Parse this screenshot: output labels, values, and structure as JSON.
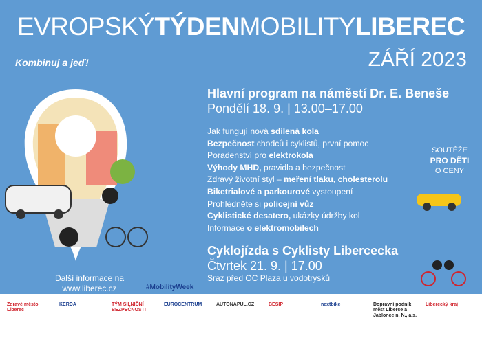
{
  "header": {
    "title_1": "EVROPSKÝ",
    "title_2": "TÝDEN",
    "title_3": "MOBILITY",
    "title_4": "LIBEREC",
    "slogan": "Kombinuj a jeď!",
    "date": "ZÁŘÍ 2023"
  },
  "main": {
    "heading": "Hlavní program na náměstí Dr. E. Beneše",
    "time": "Pondělí 18. 9. | 13.00–17.00",
    "items": [
      [
        [
          "Jak fungují nová ",
          false
        ],
        [
          "sdílená kola",
          true
        ]
      ],
      [
        [
          "Bezpečnost",
          true
        ],
        [
          " chodců i cyklistů, první pomoc",
          false
        ]
      ],
      [
        [
          "Poradenství pro ",
          false
        ],
        [
          "elektrokola",
          true
        ]
      ],
      [
        [
          "Výhody MHD,",
          true
        ],
        [
          " pravidla a bezpečnost",
          false
        ]
      ],
      [
        [
          "Zdravý životní styl – ",
          false
        ],
        [
          "meření tlaku, cholesterolu",
          true
        ]
      ],
      [
        [
          "Biketrialové a parkourové",
          true
        ],
        [
          " vystoupení",
          false
        ]
      ],
      [
        [
          "Prohlédněte si ",
          false
        ],
        [
          "policejní vůz",
          true
        ]
      ],
      [
        [
          "Cyklistické desatero,",
          true
        ],
        [
          " ukázky údržby kol",
          false
        ]
      ],
      [
        [
          "Informace ",
          false
        ],
        [
          "o elektromobilech",
          true
        ]
      ]
    ],
    "ride_heading": "Cyklojízda s Cyklisty Libercecka",
    "ride_time": "Čtvrtek 21. 9. | 17.00",
    "ride_place": "Sraz před OC Plaza u vodotrysků"
  },
  "kids": {
    "line1": "SOUTĚŽE",
    "line2": "PRO DĚTI",
    "line3": "O CENY"
  },
  "footer": {
    "info": "Další informace na",
    "url": "www.liberec.cz",
    "hashtag": "#MobilityWeek"
  },
  "logos": [
    "Zdravé město Liberec",
    "KERDA",
    "TÝM SILNIČNÍ BEZPEČNOSTI",
    "EUROCENTRUM",
    "AUTONAPUL.CZ",
    "BESIP",
    "nextbike",
    "Dopravní podnik měst Liberce a Jablonce n. N., a.s.",
    "Liberecký kraj"
  ],
  "colors": {
    "background": "#5f9bd3",
    "accent_red": "#d0252e",
    "navy": "#1b3f8f"
  }
}
